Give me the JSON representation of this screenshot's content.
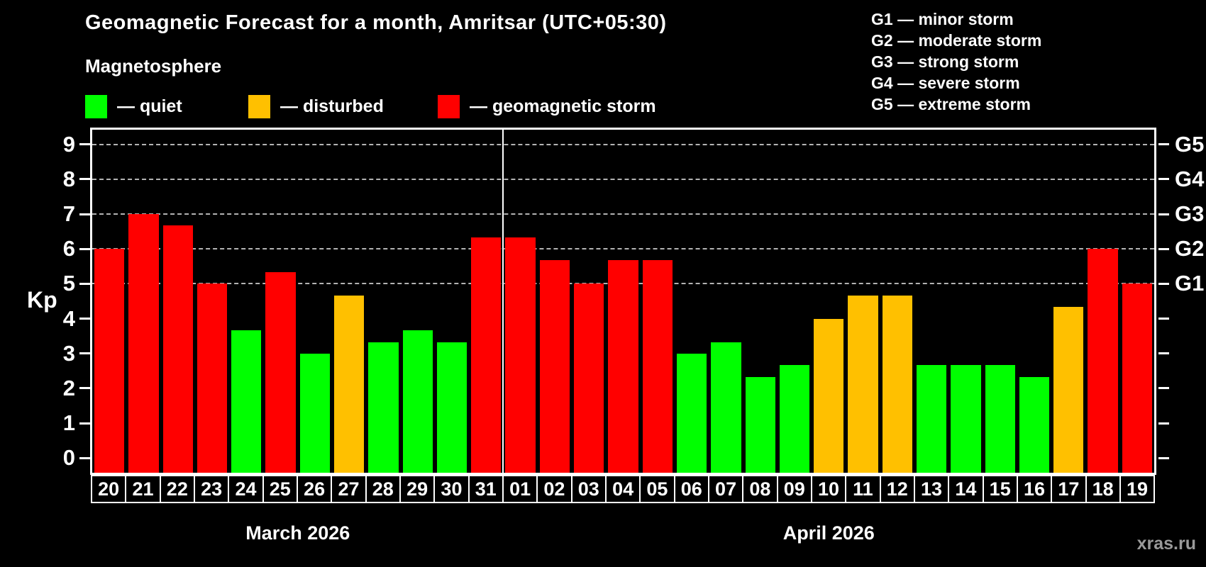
{
  "title": "Geomagnetic Forecast for a month, Amritsar (UTC+05:30)",
  "subtitle": "Magnetosphere",
  "legend": {
    "items": [
      {
        "key": "quiet",
        "label": "— quiet"
      },
      {
        "key": "disturbed",
        "label": "— disturbed"
      },
      {
        "key": "storm",
        "label": "— geomagnetic storm"
      }
    ]
  },
  "g_legend": {
    "lines": [
      "G1 — minor storm",
      "G2 — moderate storm",
      "G3 — strong storm",
      "G4 — severe storm",
      "G5 — extreme storm"
    ]
  },
  "axis": {
    "y_label": "Kp",
    "y_ticks": [
      0,
      1,
      2,
      3,
      4,
      5,
      6,
      7,
      8,
      9
    ],
    "g_labels": [
      {
        "label": "G1",
        "kp": 5
      },
      {
        "label": "G2",
        "kp": 6
      },
      {
        "label": "G3",
        "kp": 7
      },
      {
        "label": "G4",
        "kp": 8
      },
      {
        "label": "G5",
        "kp": 9
      }
    ]
  },
  "watermark": "xras.ru",
  "chart_data": {
    "type": "bar",
    "title": "Geomagnetic Forecast for a month, Amritsar (UTC+05:30)",
    "xlabel": "",
    "ylabel": "Kp",
    "ylim": [
      0,
      9
    ],
    "gridlines_at": [
      5,
      6,
      7,
      8,
      9
    ],
    "grid": true,
    "categories": [
      "20",
      "21",
      "22",
      "23",
      "24",
      "25",
      "26",
      "27",
      "28",
      "29",
      "30",
      "31",
      "01",
      "02",
      "03",
      "04",
      "05",
      "06",
      "07",
      "08",
      "09",
      "10",
      "11",
      "12",
      "13",
      "14",
      "15",
      "16",
      "17",
      "18",
      "19"
    ],
    "values": [
      6.0,
      7.0,
      6.67,
      5.0,
      3.67,
      5.33,
      3.0,
      4.67,
      3.33,
      3.67,
      3.33,
      6.33,
      6.33,
      5.67,
      5.0,
      5.67,
      5.67,
      3.0,
      3.33,
      2.33,
      2.67,
      4.0,
      4.67,
      4.67,
      2.67,
      2.67,
      2.67,
      2.33,
      4.33,
      6.0,
      5.0
    ],
    "statuses": [
      "storm",
      "storm",
      "storm",
      "storm",
      "quiet",
      "storm",
      "quiet",
      "disturbed",
      "quiet",
      "quiet",
      "quiet",
      "storm",
      "storm",
      "storm",
      "storm",
      "storm",
      "storm",
      "quiet",
      "quiet",
      "quiet",
      "quiet",
      "disturbed",
      "disturbed",
      "disturbed",
      "quiet",
      "quiet",
      "quiet",
      "quiet",
      "disturbed",
      "storm",
      "storm"
    ],
    "colors": {
      "quiet": "#00ff00",
      "disturbed": "#ffc000",
      "storm": "#ff0000"
    },
    "months": [
      {
        "label": "March 2026",
        "days": 12
      },
      {
        "label": "April 2026",
        "days": 19
      }
    ],
    "legend_position": "top",
    "status_rule": "quiet: Kp < 4, disturbed: 4 <= Kp < 5, storm: Kp >= 5"
  }
}
